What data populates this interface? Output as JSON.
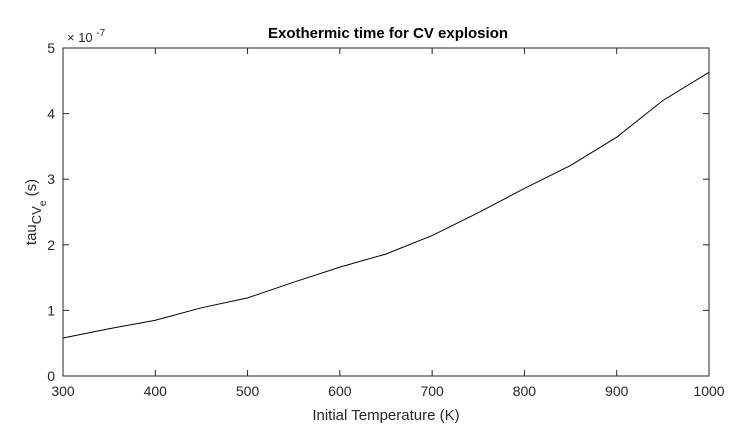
{
  "chart_data": {
    "type": "line",
    "title": "Exothermic time for CV explosion",
    "xlabel": "Initial Temperature (K)",
    "ylabel": {
      "base": "tau",
      "sub": "CV",
      "subsub": "e",
      "unit": " (s)"
    },
    "y_exponent": {
      "base": "× 10",
      "power": "-7"
    },
    "xlim": [
      300,
      1000
    ],
    "ylim": [
      0,
      5
    ],
    "y_scale_factor": 1e-07,
    "x_ticks": [
      300,
      400,
      500,
      600,
      700,
      800,
      900,
      1000
    ],
    "y_ticks": [
      0,
      1,
      2,
      3,
      4,
      5
    ],
    "grid": false,
    "legend": "none",
    "series": [
      {
        "color": "#000000",
        "x": [
          300,
          350,
          400,
          450,
          500,
          550,
          600,
          650,
          700,
          750,
          800,
          850,
          900,
          950,
          1000
        ],
        "y": [
          0.58,
          0.72,
          0.85,
          1.04,
          1.19,
          1.43,
          1.66,
          1.86,
          2.14,
          2.49,
          2.86,
          3.21,
          3.64,
          4.2,
          4.63
        ]
      }
    ]
  }
}
